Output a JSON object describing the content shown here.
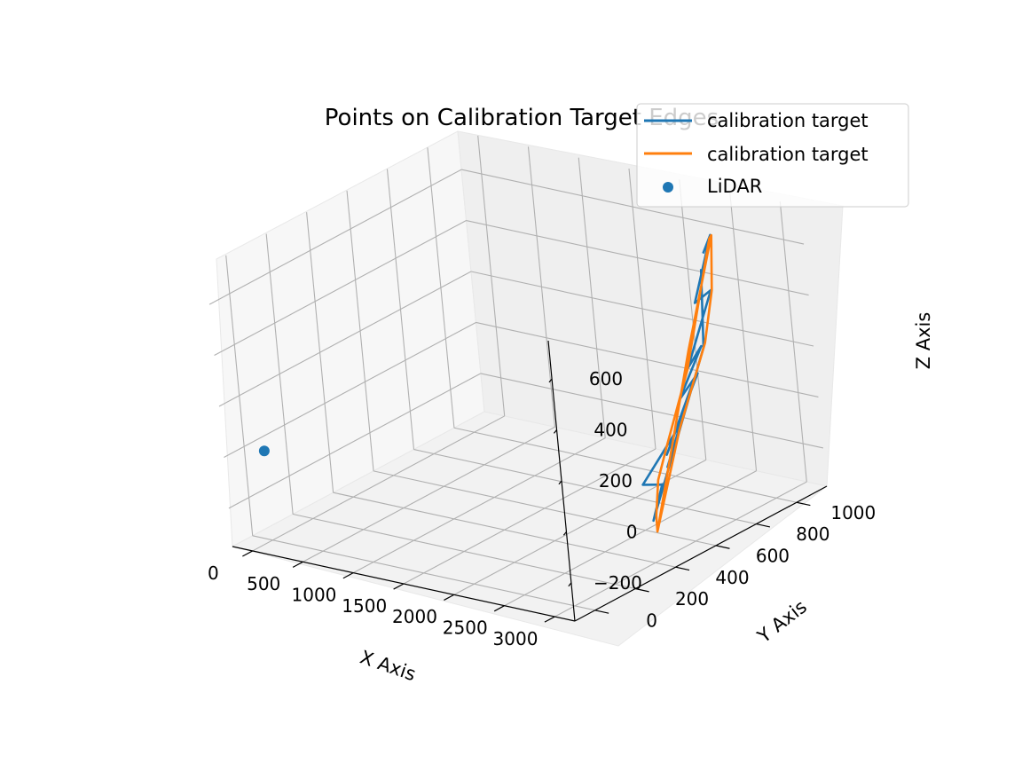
{
  "chart_data": {
    "type": "3d-line-scatter",
    "title": "Points on Calibration Target Edges",
    "xlabel": "X Axis",
    "ylabel": "Y Axis",
    "zlabel": "Z Axis",
    "xticks": [
      "0",
      "500",
      "1000",
      "1500",
      "2000",
      "2500",
      "3000"
    ],
    "yticks": [
      "0",
      "200",
      "400",
      "600",
      "800",
      "1000"
    ],
    "zticks": [
      "−200",
      "0",
      "200",
      "400",
      "600"
    ],
    "xlim": [
      -200,
      3200
    ],
    "ylim": [
      -100,
      1150
    ],
    "zlim": [
      -350,
      750
    ],
    "legend": {
      "position": "top-right",
      "entries": [
        "calibration target",
        "calibration target",
        "LiDAR"
      ]
    },
    "colors": {
      "blue": "#1f77b4",
      "orange": "#ff7f0e"
    },
    "series": [
      {
        "name": "calibration target",
        "kind": "line",
        "color": "#1f77b4",
        "points": [
          [
            2470,
            1010,
            560
          ],
          [
            2560,
            1010,
            640
          ],
          [
            2360,
            1000,
            360
          ],
          [
            2620,
            960,
            450
          ],
          [
            2250,
            990,
            100
          ],
          [
            2620,
            890,
            260
          ],
          [
            2220,
            950,
            -10
          ],
          [
            2600,
            870,
            160
          ],
          [
            2080,
            930,
            -230
          ],
          [
            2570,
            860,
            130
          ],
          [
            2140,
            900,
            -260
          ],
          [
            2470,
            830,
            -30
          ],
          [
            2130,
            780,
            -280
          ],
          [
            2370,
            760,
            -250
          ],
          [
            2290,
            740,
            -390
          ],
          [
            2620,
            900,
            250
          ],
          [
            2520,
            970,
            520
          ]
        ]
      },
      {
        "name": "calibration target",
        "kind": "line",
        "color": "#ff7f0e",
        "points": [
          [
            2460,
            1050,
            600
          ],
          [
            2570,
            1010,
            640
          ],
          [
            2630,
            960,
            450
          ],
          [
            2640,
            900,
            270
          ],
          [
            2470,
            820,
            -50
          ],
          [
            2320,
            740,
            -430
          ],
          [
            2280,
            760,
            -380
          ],
          [
            2140,
            850,
            -290
          ],
          [
            2060,
            940,
            -210
          ],
          [
            2240,
            990,
            90
          ],
          [
            2460,
            1050,
            600
          ],
          [
            2570,
            1010,
            640
          ],
          [
            2420,
            920,
            210
          ],
          [
            2320,
            740,
            -430
          ]
        ]
      },
      {
        "name": "LiDAR",
        "kind": "scatter",
        "color": "#1f77b4",
        "points": [
          [
            0,
            0,
            0
          ]
        ]
      }
    ]
  }
}
